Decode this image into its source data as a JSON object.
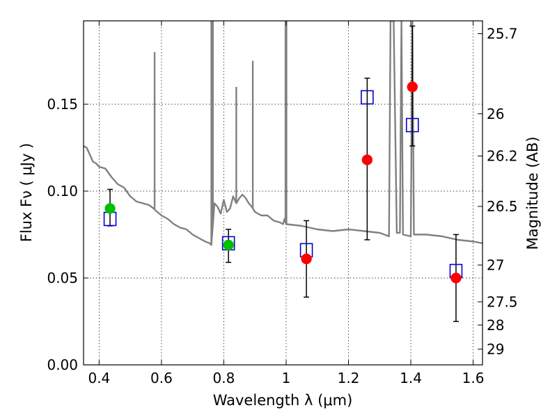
{
  "chart_data": {
    "type": "scatter",
    "xlabel": "Wavelength  λ (μm)",
    "ylabel": "Flux  Fν  ( μJy )",
    "y2label": "Magnitude (AB)",
    "xlim": [
      0.35,
      1.63
    ],
    "ylim": [
      0.0,
      0.198
    ],
    "grid": true,
    "x_ticks": [
      0.4,
      0.6,
      0.8,
      1.0,
      1.2,
      1.4,
      1.6
    ],
    "x_tick_labels": [
      "0.4",
      "0.6",
      "0.8",
      "1",
      "1.2",
      "1.4",
      "1.6"
    ],
    "y_ticks": [
      0.0,
      0.05,
      0.1,
      0.15
    ],
    "y_tick_labels": [
      "0.00",
      "0.05",
      "0.10",
      "0.15"
    ],
    "mag_ticks": [
      {
        "label": "25.7",
        "flux": 0.1906
      },
      {
        "label": "26",
        "flux": 0.1445
      },
      {
        "label": "26.2",
        "flux": 0.1202
      },
      {
        "label": "26.5",
        "flux": 0.0912
      },
      {
        "label": "27",
        "flux": 0.0575
      },
      {
        "label": "27.5",
        "flux": 0.0363
      },
      {
        "label": "28",
        "flux": 0.0229
      },
      {
        "label": "29",
        "flux": 0.0091
      }
    ],
    "colors": {
      "sed": "#808080",
      "model": "#0000cc",
      "optical": "#00c000",
      "nir": "#ff0000",
      "errorbar": "#000000"
    },
    "sed_line": {
      "x": [
        0.35,
        0.36,
        0.37,
        0.38,
        0.39,
        0.4,
        0.42,
        0.44,
        0.46,
        0.48,
        0.5,
        0.52,
        0.54,
        0.56,
        0.575,
        0.58,
        0.6,
        0.62,
        0.64,
        0.66,
        0.68,
        0.7,
        0.72,
        0.74,
        0.755,
        0.76,
        0.765,
        0.77,
        0.78,
        0.79,
        0.8,
        0.81,
        0.82,
        0.83,
        0.84,
        0.85,
        0.86,
        0.87,
        0.88,
        0.89,
        0.9,
        0.92,
        0.94,
        0.96,
        0.98,
        0.99,
        0.995,
        1.0,
        1.05,
        1.1,
        1.15,
        1.2,
        1.25,
        1.3,
        1.33,
        1.335,
        1.345,
        1.355,
        1.365,
        1.37,
        1.375,
        1.4,
        1.405,
        1.41,
        1.45,
        1.5,
        1.55,
        1.6,
        1.63
      ],
      "y": [
        0.126,
        0.125,
        0.121,
        0.117,
        0.116,
        0.114,
        0.113,
        0.108,
        0.104,
        0.102,
        0.097,
        0.094,
        0.093,
        0.092,
        0.09,
        0.089,
        0.086,
        0.084,
        0.081,
        0.079,
        0.078,
        0.075,
        0.073,
        0.071,
        0.07,
        0.069,
        0.081,
        0.093,
        0.091,
        0.087,
        0.095,
        0.088,
        0.09,
        0.097,
        0.093,
        0.096,
        0.098,
        0.096,
        0.093,
        0.091,
        0.088,
        0.086,
        0.086,
        0.083,
        0.082,
        0.081,
        0.084,
        0.081,
        0.08,
        0.078,
        0.077,
        0.078,
        0.077,
        0.076,
        0.074,
        0.198,
        0.198,
        0.076,
        0.076,
        0.198,
        0.075,
        0.074,
        0.198,
        0.075,
        0.075,
        0.074,
        0.072,
        0.071,
        0.07
      ]
    },
    "emission_lines": [
      {
        "x": 0.578,
        "peak": 0.18
      },
      {
        "x": 0.76,
        "peak": 0.198
      },
      {
        "x": 0.765,
        "peak": 0.198
      },
      {
        "x": 0.84,
        "peak": 0.16
      },
      {
        "x": 0.893,
        "peak": 0.175
      },
      {
        "x": 0.998,
        "peak": 0.198
      },
      {
        "x": 1.001,
        "peak": 0.198
      }
    ],
    "series": [
      {
        "kind": "model",
        "marker": "square",
        "x": [
          0.435,
          0.815,
          1.065,
          1.26,
          1.405,
          1.545
        ],
        "y": [
          0.084,
          0.07,
          0.066,
          0.154,
          0.138,
          0.054
        ]
      },
      {
        "kind": "optical",
        "marker": "circle",
        "x": [
          0.435,
          0.815
        ],
        "y": [
          0.09,
          0.069
        ]
      },
      {
        "kind": "nir",
        "marker": "circle",
        "x": [
          1.065,
          1.26,
          1.405,
          1.545
        ],
        "y": [
          0.061,
          0.118,
          0.16,
          0.05
        ]
      }
    ],
    "error_bars": [
      {
        "x": 0.435,
        "low": 0.08,
        "high": 0.101
      },
      {
        "x": 0.815,
        "low": 0.059,
        "high": 0.078
      },
      {
        "x": 1.065,
        "low": 0.039,
        "high": 0.083
      },
      {
        "x": 1.26,
        "low": 0.072,
        "high": 0.165
      },
      {
        "x": 1.405,
        "low": 0.126,
        "high": 0.195
      },
      {
        "x": 1.545,
        "low": 0.025,
        "high": 0.075
      }
    ]
  }
}
